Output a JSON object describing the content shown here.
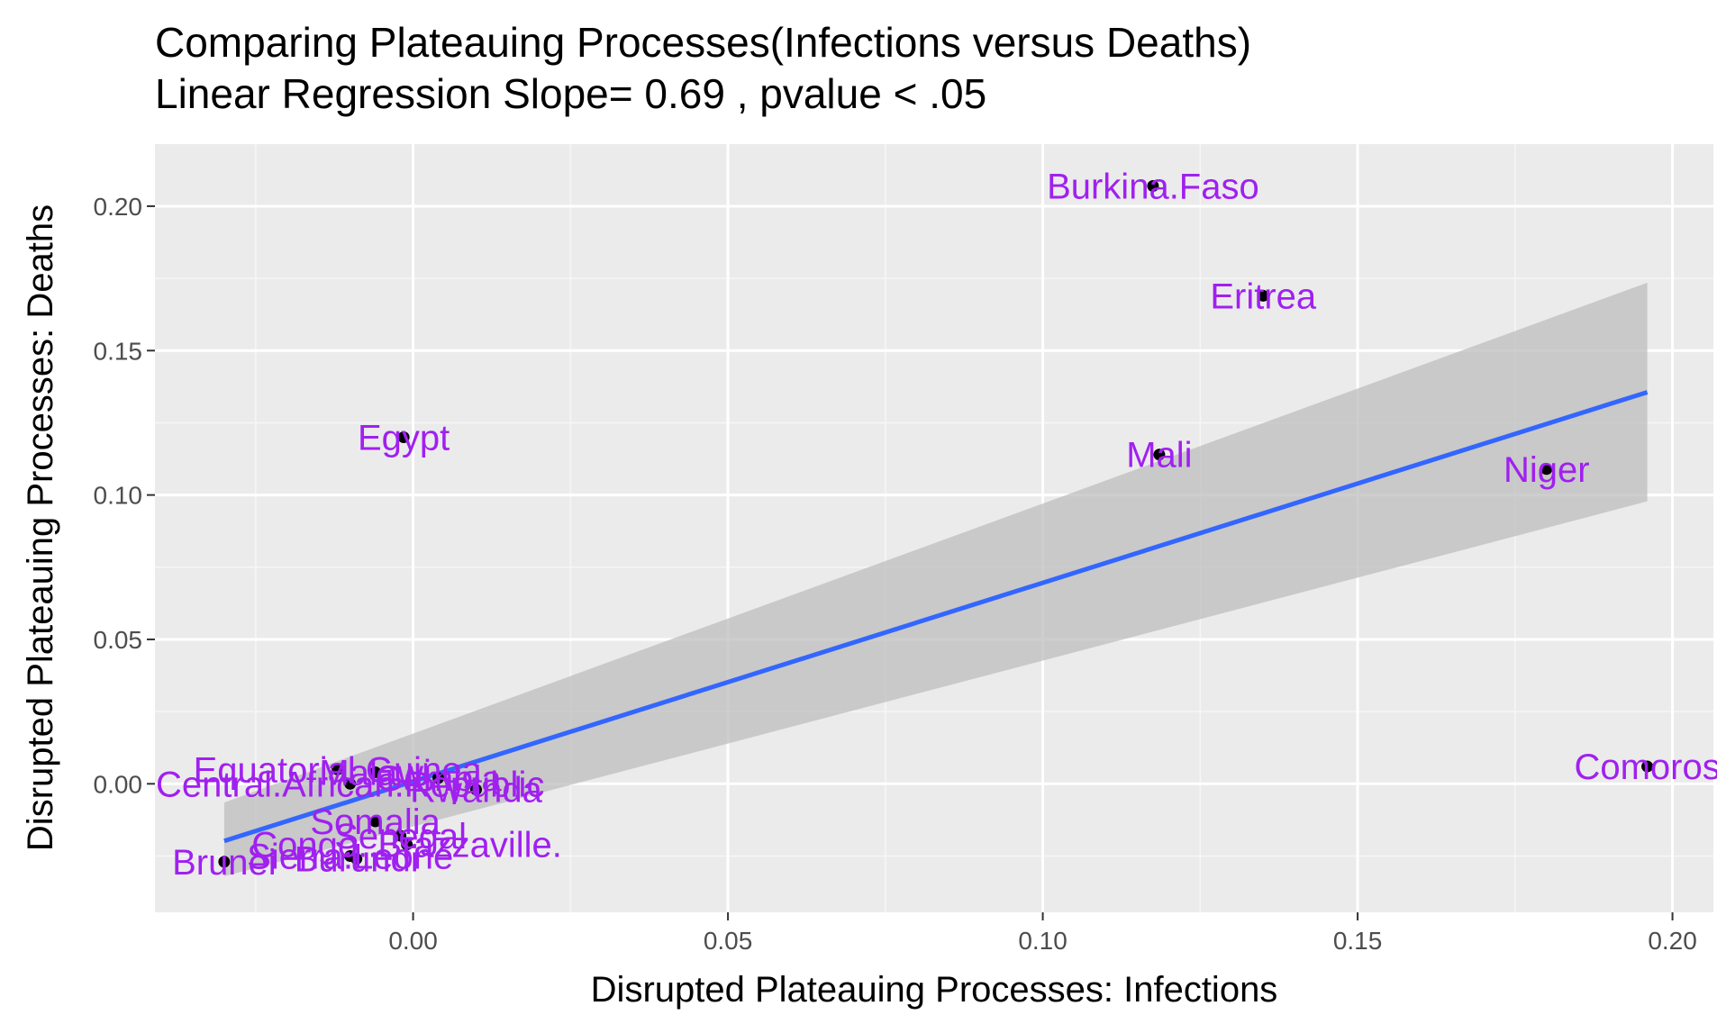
{
  "chart_data": {
    "type": "scatter",
    "title": "Comparing Plateauing Processes(Infections versus Deaths)",
    "subtitle": "Linear Regression Slope= 0.69 , pvalue  < .05",
    "xlabel": "Disrupted Plateauing Processes: Infections",
    "ylabel": "Disrupted Plateauing Processes: Deaths",
    "xlim": [
      -0.041,
      0.2065
    ],
    "ylim": [
      -0.0445,
      0.2215
    ],
    "xticks": [
      0.0,
      0.05,
      0.1,
      0.15,
      0.2
    ],
    "xtick_labels": [
      "0.00",
      "0.05",
      "0.10",
      "0.15",
      "0.20"
    ],
    "yticks": [
      0.0,
      0.05,
      0.1,
      0.15,
      0.2
    ],
    "ytick_labels": [
      "0.00",
      "0.05",
      "0.10",
      "0.15",
      "0.20"
    ],
    "grid": true,
    "label_color": "#a020f0",
    "point_color": "#000000",
    "fit_color": "#3366ff",
    "band_color": "#bdbdbd",
    "panel_background": "#ebebeb",
    "regression": {
      "slope": 0.69,
      "x_range": [
        -0.03,
        0.196
      ],
      "y_start": -0.0198,
      "y_end": 0.1356,
      "ci_lower_start": -0.032,
      "ci_upper_start": -0.0065,
      "ci_lower_end": 0.0978,
      "ci_upper_end": 0.1735
    },
    "points": [
      {
        "label": "Burkina.Faso",
        "x": 0.1175,
        "y": 0.207
      },
      {
        "label": "Eritrea",
        "x": 0.135,
        "y": 0.169
      },
      {
        "label": "Egypt",
        "x": -0.0015,
        "y": 0.12
      },
      {
        "label": "Mali",
        "x": 0.1185,
        "y": 0.114
      },
      {
        "label": "Niger",
        "x": 0.18,
        "y": 0.109
      },
      {
        "label": "Comoros",
        "x": 0.196,
        "y": 0.006
      },
      {
        "label": "Equatorial.Guinea",
        "x": -0.012,
        "y": 0.005
      },
      {
        "label": "Malawi",
        "x": -0.006,
        "y": 0.004
      },
      {
        "label": "Gambia",
        "x": 0.004,
        "y": 0.002
      },
      {
        "label": "Central.African.Republic",
        "x": -0.01,
        "y": 0.0
      },
      {
        "label": "Rwanda",
        "x": 0.01,
        "y": -0.002
      },
      {
        "label": "Somalia",
        "x": -0.006,
        "y": -0.013
      },
      {
        "label": "Senegal",
        "x": -0.002,
        "y": -0.018
      },
      {
        "label": "Sierra.Leone",
        "x": -0.01,
        "y": -0.025
      },
      {
        "label": "Congo..Brazzaville.",
        "x": -0.001,
        "y": -0.021
      },
      {
        "label": "Burundi",
        "x": -0.009,
        "y": -0.026
      },
      {
        "label": "Brunei",
        "x": -0.03,
        "y": -0.027
      }
    ]
  }
}
